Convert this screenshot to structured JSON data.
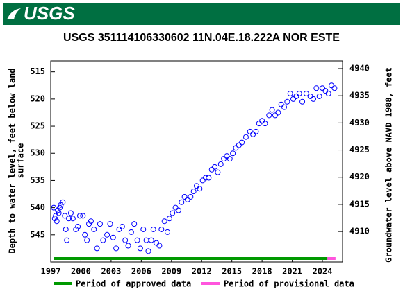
{
  "header": {
    "logo": "USGS"
  },
  "chart_data": {
    "type": "scatter",
    "title": "USGS 351114106330602 11N.04E.18.222A NOR ESTE",
    "ylabel": [
      "Depth to water level, feet below land",
      "surface"
    ],
    "y2label": "Groundwater level above NAVD 1988, feet",
    "xlim": [
      1997,
      2026
    ],
    "xticks": [
      1997,
      2000,
      2003,
      2006,
      2009,
      2012,
      2015,
      2018,
      2021,
      2024
    ],
    "ylim": [
      550,
      513
    ],
    "yticks": [
      515,
      520,
      525,
      530,
      535,
      540,
      545
    ],
    "y2lim": [
      4904.4,
      4941.4
    ],
    "y2ticks": [
      4910,
      4915,
      4920,
      4925,
      4930,
      4935,
      4940
    ],
    "color": "#0000ff",
    "x": [
      1997.3,
      1997.4,
      1997.5,
      1997.6,
      1997.7,
      1997.8,
      1997.9,
      1998.0,
      1998.2,
      1998.4,
      1998.5,
      1998.6,
      1998.8,
      1999.0,
      1999.2,
      1999.5,
      1999.7,
      1999.9,
      2000.2,
      2000.4,
      2000.6,
      2000.8,
      2001.0,
      2001.3,
      2001.6,
      2001.9,
      2002.2,
      2002.6,
      2002.9,
      2003.2,
      2003.5,
      2003.8,
      2004.1,
      2004.4,
      2004.7,
      2005.0,
      2005.3,
      2005.6,
      2005.9,
      2006.2,
      2006.5,
      2006.7,
      2007.0,
      2007.2,
      2007.5,
      2007.8,
      2008.0,
      2008.3,
      2008.6,
      2008.8,
      2009.1,
      2009.4,
      2009.7,
      2010.0,
      2010.3,
      2010.6,
      2010.9,
      2011.2,
      2011.5,
      2011.8,
      2012.1,
      2012.4,
      2012.7,
      2013.0,
      2013.3,
      2013.6,
      2013.9,
      2014.2,
      2014.5,
      2014.8,
      2015.1,
      2015.4,
      2015.7,
      2016.0,
      2016.4,
      2016.8,
      2017.1,
      2017.4,
      2017.7,
      2018.0,
      2018.3,
      2018.7,
      2019.0,
      2019.3,
      2019.6,
      2019.9,
      2020.2,
      2020.5,
      2020.8,
      2021.1,
      2021.4,
      2021.7,
      2022.0,
      2022.4,
      2022.8,
      2023.1,
      2023.4,
      2023.7,
      2024.0,
      2024.3,
      2024.6,
      2024.9,
      2025.2
    ],
    "values": [
      540,
      542,
      541.5,
      542.5,
      540.5,
      541,
      540,
      539.5,
      539,
      541.5,
      544,
      546,
      542,
      541,
      542,
      544,
      543.5,
      541.5,
      541.5,
      545,
      546,
      543,
      542.5,
      544,
      547.5,
      543,
      546,
      545,
      543,
      545.5,
      547.5,
      544,
      543.5,
      546,
      547,
      544.5,
      543,
      546,
      547.5,
      544,
      546,
      548,
      546,
      544,
      546.5,
      547,
      544,
      542.5,
      544.5,
      542,
      541,
      540,
      540.5,
      539,
      538,
      538.5,
      538,
      537,
      536,
      536.5,
      535,
      534.5,
      534.5,
      533,
      532.5,
      533.5,
      532,
      531,
      530.5,
      531,
      530,
      529,
      528.5,
      528,
      527,
      526,
      526.5,
      526,
      524.5,
      524,
      524.5,
      523,
      522,
      523,
      522.5,
      521,
      521.5,
      520.5,
      519,
      520,
      519.5,
      519,
      520.5,
      519,
      519.5,
      520,
      518,
      519.5,
      518,
      518.5,
      519,
      517.5,
      518
    ],
    "periods": [
      {
        "name": "Period of approved data",
        "color": "#009900",
        "start": 1997.3,
        "end": 2024.5
      },
      {
        "name": "Period of provisional data",
        "color": "#ff55dd",
        "start": 2024.5,
        "end": 2025.3
      }
    ]
  }
}
